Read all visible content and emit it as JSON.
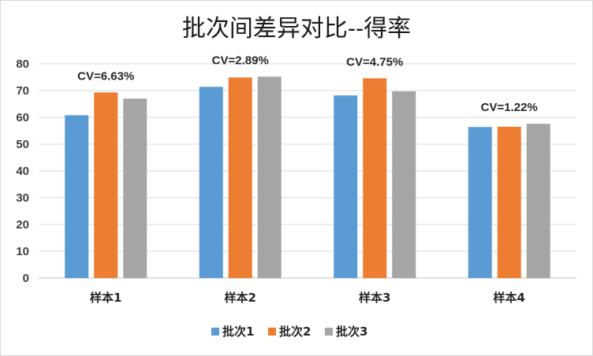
{
  "chart_data": {
    "type": "bar",
    "title": "批次间差异对比--得率",
    "categories": [
      "样本1",
      "样本2",
      "样本3",
      "样本4"
    ],
    "series": [
      {
        "name": "批次1",
        "color": "#5b9bd5",
        "values": [
          60.8,
          71.4,
          68.2,
          56.4
        ]
      },
      {
        "name": "批次2",
        "color": "#ed7d31",
        "values": [
          69.3,
          74.9,
          74.6,
          56.5
        ]
      },
      {
        "name": "批次3",
        "color": "#a5a5a5",
        "values": [
          67.0,
          75.2,
          69.7,
          57.6
        ]
      }
    ],
    "annotations": [
      "CV=6.63%",
      "CV=2.89%",
      "CV=4.75%",
      "CV=1.22%"
    ],
    "ylim": [
      0,
      80
    ],
    "yticks": [
      0,
      10,
      20,
      30,
      40,
      50,
      60,
      70,
      80
    ],
    "xlabel": "",
    "ylabel": "",
    "grid": true,
    "legend_position": "bottom"
  }
}
